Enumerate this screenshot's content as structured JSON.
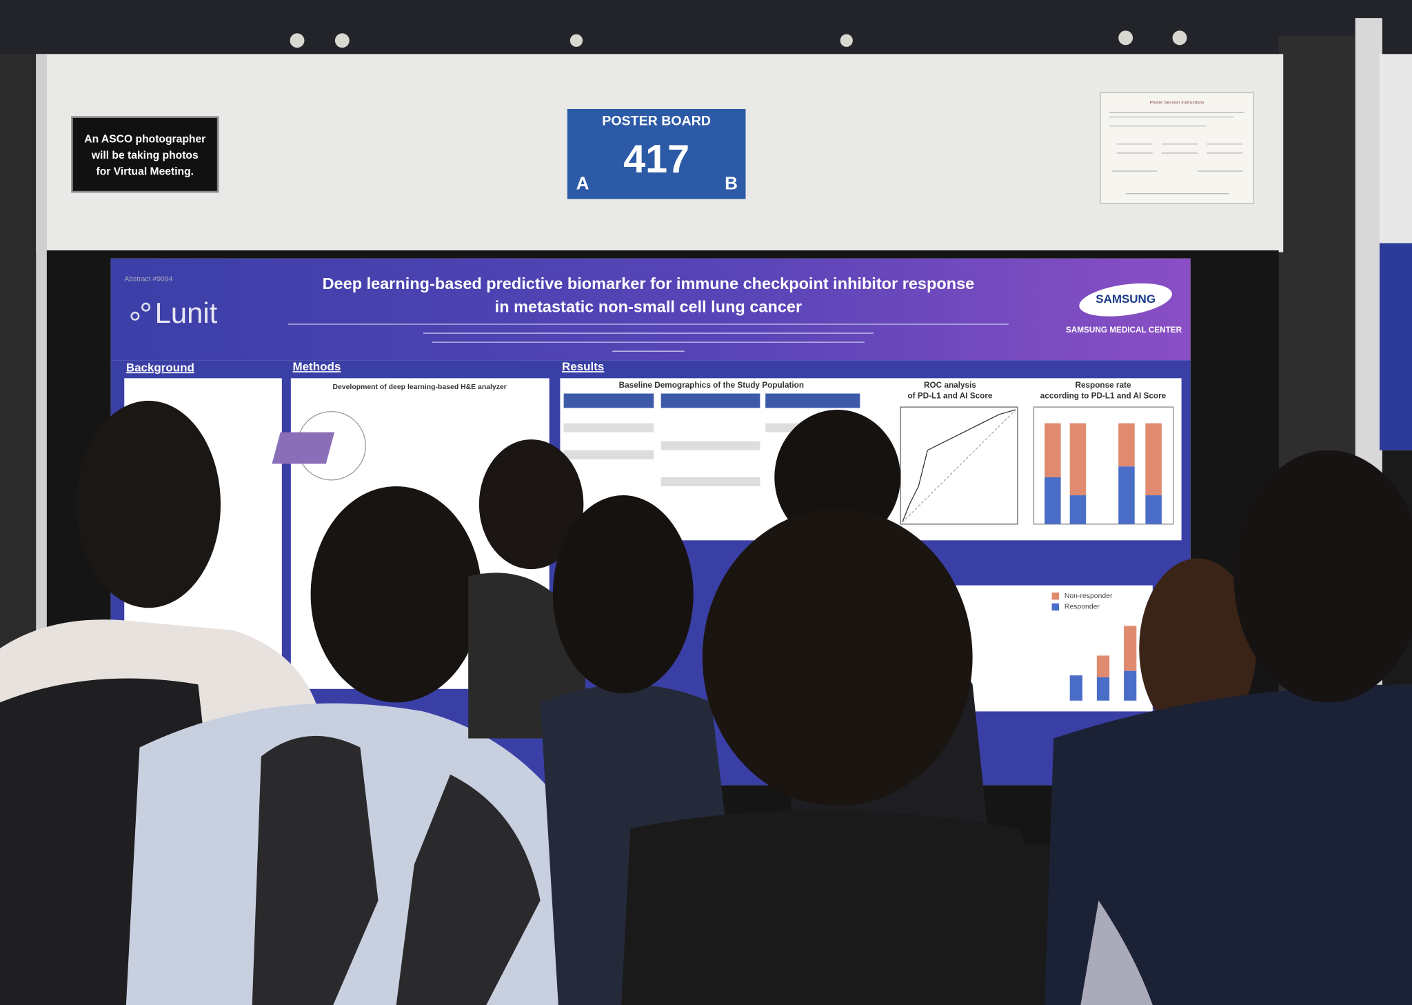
{
  "sign": {
    "lines": [
      "An ASCO photographer",
      "will be taking photos",
      "for Virtual Meeting."
    ]
  },
  "board": {
    "label": "POSTER BOARD",
    "number": "417",
    "left": "A",
    "right": "B"
  },
  "instructions": {
    "title": "Poster Session Instructions"
  },
  "poster": {
    "abstract": "Abstract #9094",
    "title_lines": [
      "Deep learning-based predictive biomarker for immune checkpoint inhibitor response",
      "in metastatic non-small cell lung cancer"
    ],
    "logo_left": "Lunit",
    "logo_right": "SAMSUNG",
    "logo_right_sub": "SAMSUNG MEDICAL CENTER",
    "sections": [
      "Background",
      "Methods",
      "Results"
    ],
    "panels": [
      "Development of deep learning-based H&E analyzer",
      "Baseline Demographics of the Study Population",
      "ROC analysis",
      "of PD-L1 and AI Score",
      "Response rate",
      "according to PD-L1 and AI Score"
    ],
    "legend": [
      "Non-responder",
      "Responder"
    ]
  }
}
